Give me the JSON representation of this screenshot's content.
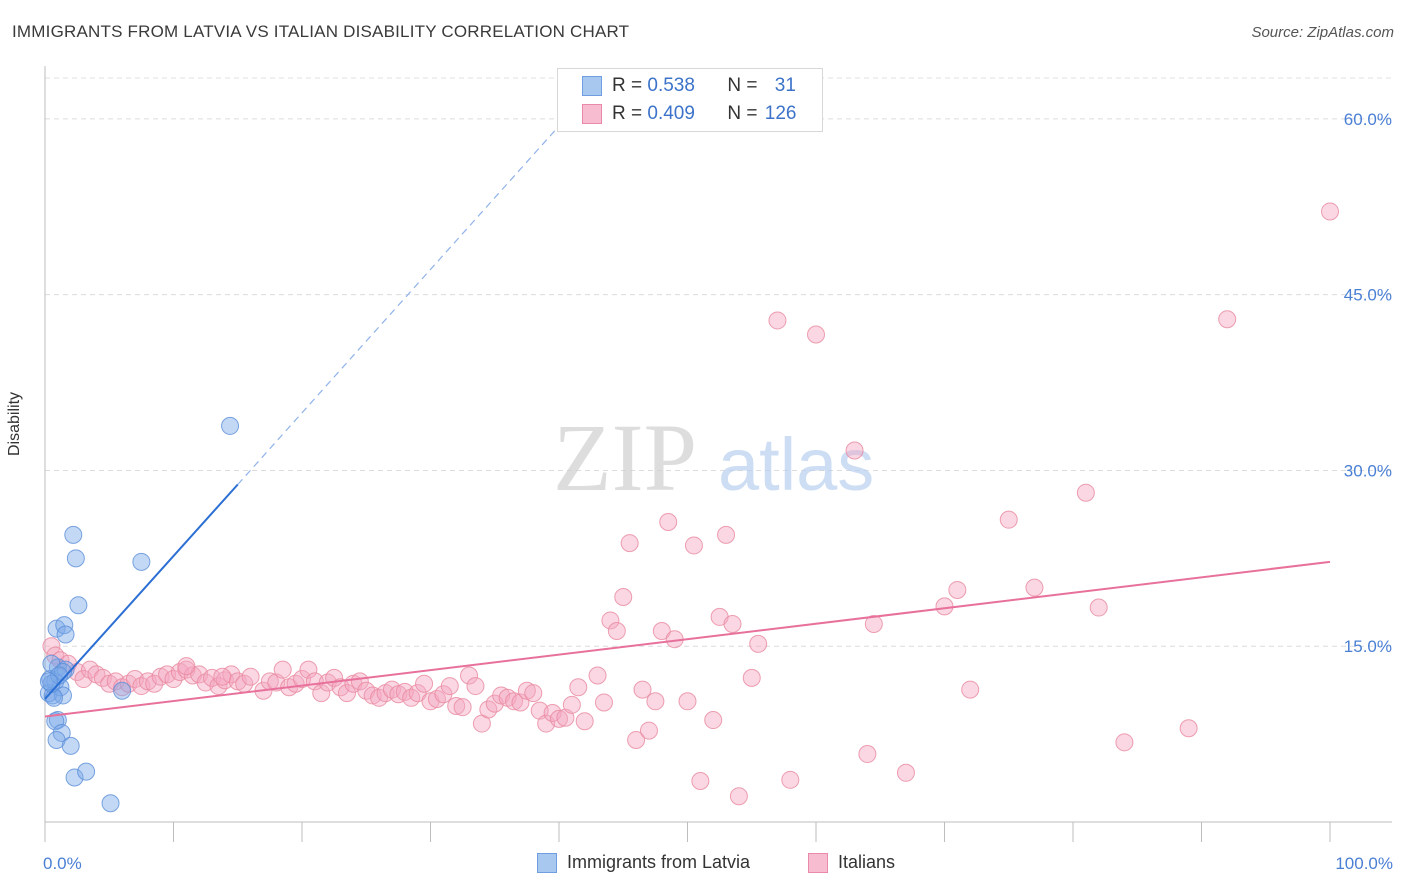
{
  "header": {
    "title": "IMMIGRANTS FROM LATVIA VS ITALIAN DISABILITY CORRELATION CHART",
    "source": "Source: ZipAtlas.com"
  },
  "watermark": {
    "zip": "ZIP",
    "atlas": "atlas"
  },
  "legend": {
    "rows": [
      {
        "r_label": "R = ",
        "r_value": "0.538",
        "n_label": "N = ",
        "n_value": "31",
        "color": "#a9c8f0",
        "border": "#6f9fe0"
      },
      {
        "r_label": "R = ",
        "r_value": "0.409",
        "n_label": "N = ",
        "n_value": "126",
        "color": "#f7bcd0",
        "border": "#e98aaa"
      }
    ],
    "bottom": [
      {
        "label": "Immigrants from Latvia",
        "color": "#a9c8f0",
        "border": "#6f9fe0"
      },
      {
        "label": "Italians",
        "color": "#f7bcd0",
        "border": "#e98aaa"
      }
    ]
  },
  "chart_data": {
    "type": "scatter",
    "title": "IMMIGRANTS FROM LATVIA VS ITALIAN DISABILITY CORRELATION CHART",
    "xlabel": "",
    "ylabel": "Disability",
    "xlim": [
      0,
      100
    ],
    "ylim": [
      0,
      64
    ],
    "x_tick_labels": [
      "0.0%",
      "100.0%"
    ],
    "y_ticks": [
      15,
      30,
      45,
      60
    ],
    "y_tick_labels": [
      "15.0%",
      "30.0%",
      "45.0%",
      "60.0%"
    ],
    "grid": true,
    "legend_position": "top-center",
    "series": [
      {
        "name": "Immigrants from Latvia",
        "color": "#7aa9e8",
        "line_color": "#2b6fd4",
        "trend": {
          "x0": 0,
          "y0": 10.5,
          "x1": 15,
          "y1": 28.8,
          "x_ext": 40.5,
          "y_ext": 60
        },
        "points": [
          [
            0.3,
            11.0
          ],
          [
            0.6,
            10.8
          ],
          [
            0.4,
            12.2
          ],
          [
            0.8,
            12.0
          ],
          [
            1.0,
            13.2
          ],
          [
            0.5,
            13.5
          ],
          [
            1.6,
            13.0
          ],
          [
            1.4,
            12.8
          ],
          [
            1.2,
            11.5
          ],
          [
            0.9,
            16.5
          ],
          [
            1.5,
            16.8
          ],
          [
            1.6,
            16.0
          ],
          [
            2.2,
            24.5
          ],
          [
            2.4,
            22.5
          ],
          [
            2.6,
            18.5
          ],
          [
            7.5,
            22.2
          ],
          [
            14.4,
            33.8
          ],
          [
            1.0,
            8.7
          ],
          [
            0.8,
            8.6
          ],
          [
            1.3,
            7.6
          ],
          [
            0.9,
            7.0
          ],
          [
            2.0,
            6.5
          ],
          [
            2.3,
            3.8
          ],
          [
            3.2,
            4.3
          ],
          [
            5.1,
            1.6
          ],
          [
            6.0,
            11.2
          ],
          [
            1.4,
            10.8
          ],
          [
            0.7,
            10.6
          ],
          [
            0.5,
            11.8
          ],
          [
            1.1,
            12.5
          ],
          [
            0.3,
            12.0
          ]
        ]
      },
      {
        "name": "Italians",
        "color": "#f3a6c1",
        "line_color": "#e8719b",
        "trend": {
          "x0": 0,
          "y0": 9.0,
          "x1": 100,
          "y1": 22.2
        },
        "points": [
          [
            0.5,
            15.0
          ],
          [
            0.8,
            14.2
          ],
          [
            1.2,
            13.8
          ],
          [
            1.8,
            13.5
          ],
          [
            2.5,
            12.8
          ],
          [
            3.0,
            12.2
          ],
          [
            3.5,
            13.0
          ],
          [
            4.0,
            12.6
          ],
          [
            4.5,
            12.3
          ],
          [
            5.0,
            11.8
          ],
          [
            5.5,
            12.0
          ],
          [
            6.0,
            11.5
          ],
          [
            6.5,
            11.8
          ],
          [
            7.0,
            12.2
          ],
          [
            7.5,
            11.6
          ],
          [
            8.0,
            12.0
          ],
          [
            8.5,
            11.8
          ],
          [
            9.0,
            12.4
          ],
          [
            9.5,
            12.6
          ],
          [
            10.0,
            12.2
          ],
          [
            10.5,
            12.8
          ],
          [
            11.0,
            13.0
          ],
          [
            11.5,
            12.5
          ],
          [
            12.0,
            12.6
          ],
          [
            12.5,
            11.9
          ],
          [
            13.0,
            12.3
          ],
          [
            13.5,
            11.6
          ],
          [
            14.0,
            12.1
          ],
          [
            14.5,
            12.6
          ],
          [
            15.0,
            12.0
          ],
          [
            15.5,
            11.8
          ],
          [
            16.0,
            12.4
          ],
          [
            17.0,
            11.2
          ],
          [
            17.5,
            12.0
          ],
          [
            18.0,
            11.9
          ],
          [
            18.5,
            13.0
          ],
          [
            19.0,
            11.5
          ],
          [
            19.5,
            11.8
          ],
          [
            20.0,
            12.2
          ],
          [
            20.5,
            13.0
          ],
          [
            21.0,
            12.0
          ],
          [
            21.5,
            11.0
          ],
          [
            22.0,
            11.9
          ],
          [
            22.5,
            12.3
          ],
          [
            23.0,
            11.5
          ],
          [
            23.5,
            11.0
          ],
          [
            24.0,
            11.8
          ],
          [
            24.5,
            12.0
          ],
          [
            25.0,
            11.2
          ],
          [
            25.5,
            10.8
          ],
          [
            26.0,
            10.6
          ],
          [
            26.5,
            11.0
          ],
          [
            27.0,
            11.3
          ],
          [
            27.5,
            10.9
          ],
          [
            28.0,
            11.1
          ],
          [
            28.5,
            10.6
          ],
          [
            29.0,
            11.0
          ],
          [
            29.5,
            11.8
          ],
          [
            30.0,
            10.3
          ],
          [
            30.5,
            10.5
          ],
          [
            31.0,
            10.9
          ],
          [
            31.5,
            11.6
          ],
          [
            32.0,
            9.9
          ],
          [
            32.5,
            9.8
          ],
          [
            33.0,
            12.5
          ],
          [
            33.5,
            11.6
          ],
          [
            34.0,
            8.4
          ],
          [
            34.5,
            9.6
          ],
          [
            35.0,
            10.1
          ],
          [
            35.5,
            10.8
          ],
          [
            36.0,
            10.6
          ],
          [
            36.5,
            10.3
          ],
          [
            37.0,
            10.2
          ],
          [
            37.5,
            11.2
          ],
          [
            38.0,
            11.0
          ],
          [
            38.5,
            9.5
          ],
          [
            39.0,
            8.4
          ],
          [
            39.5,
            9.3
          ],
          [
            40.0,
            8.8
          ],
          [
            40.5,
            8.9
          ],
          [
            41.0,
            10.0
          ],
          [
            41.5,
            11.5
          ],
          [
            42.0,
            8.6
          ],
          [
            43.0,
            12.5
          ],
          [
            43.5,
            10.2
          ],
          [
            44.0,
            17.2
          ],
          [
            44.5,
            16.3
          ],
          [
            45.0,
            19.2
          ],
          [
            45.5,
            23.8
          ],
          [
            46.0,
            7.0
          ],
          [
            46.5,
            11.3
          ],
          [
            47.0,
            7.8
          ],
          [
            47.5,
            10.3
          ],
          [
            48.0,
            16.3
          ],
          [
            48.5,
            25.6
          ],
          [
            49.0,
            15.6
          ],
          [
            50.0,
            10.3
          ],
          [
            50.5,
            23.6
          ],
          [
            51.0,
            3.5
          ],
          [
            52.0,
            8.7
          ],
          [
            52.5,
            17.5
          ],
          [
            53.0,
            24.5
          ],
          [
            53.5,
            16.9
          ],
          [
            54.0,
            2.2
          ],
          [
            55.0,
            12.3
          ],
          [
            55.5,
            15.2
          ],
          [
            57.0,
            42.8
          ],
          [
            58.0,
            3.6
          ],
          [
            60.0,
            41.6
          ],
          [
            63.0,
            31.7
          ],
          [
            64.0,
            5.8
          ],
          [
            64.5,
            16.9
          ],
          [
            67.0,
            4.2
          ],
          [
            70.0,
            18.4
          ],
          [
            71.0,
            19.8
          ],
          [
            72.0,
            11.3
          ],
          [
            75.0,
            25.8
          ],
          [
            77.0,
            20.0
          ],
          [
            81.0,
            28.1
          ],
          [
            82.0,
            18.3
          ],
          [
            84.0,
            6.8
          ],
          [
            89.0,
            8.0
          ],
          [
            92.0,
            42.9
          ],
          [
            100.0,
            52.1
          ],
          [
            11.0,
            13.3
          ],
          [
            13.8,
            12.4
          ]
        ]
      }
    ]
  }
}
